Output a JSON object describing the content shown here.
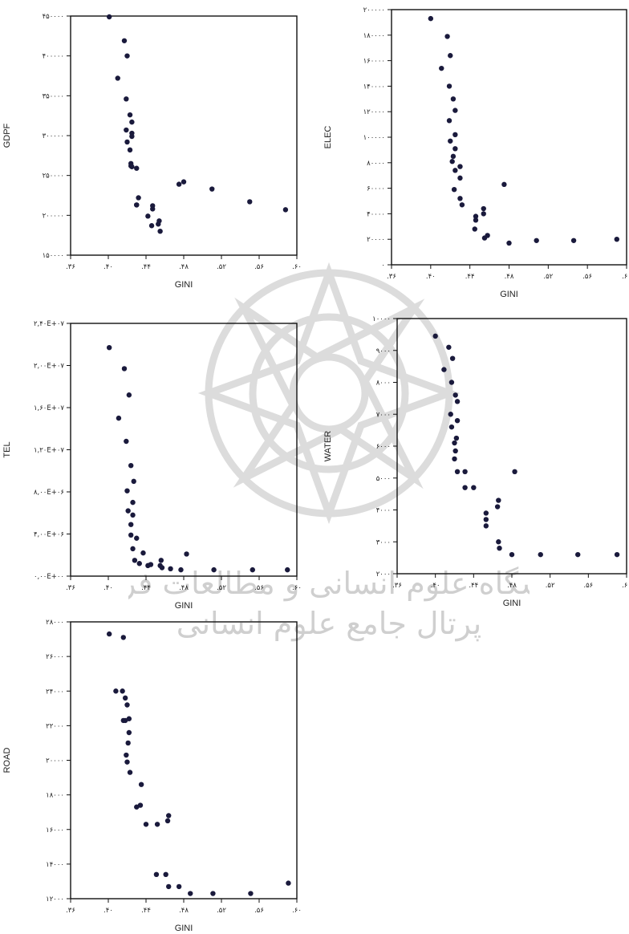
{
  "watermark": {
    "line1": "پژوهشگاه علوم انسانی و مطالعات فرهنگی",
    "line2": "پرتال جامع علوم انسانی"
  },
  "chart_data": [
    {
      "id": "gdpf",
      "type": "scatter",
      "xlabel": "GINI",
      "ylabel": "GDPF",
      "xlim": [
        0.36,
        0.6
      ],
      "ylim": [
        150000,
        450000
      ],
      "xtick_labels": [
        ".۳۶",
        ".۴۰",
        ".۴۴",
        ".۴۸",
        ".۵۲",
        ".۵۶",
        ".۶۰"
      ],
      "ytick_labels": [
        "۱۵۰۰۰۰",
        "۲۰۰۰۰۰",
        "۲۵۰۰۰۰",
        "۳۰۰۰۰۰",
        "۳۵۰۰۰۰",
        "۴۰۰۰۰۰",
        "۴۵۰۰۰۰"
      ],
      "x": [
        0.401,
        0.417,
        0.42,
        0.41,
        0.419,
        0.423,
        0.425,
        0.419,
        0.425,
        0.42,
        0.425,
        0.423,
        0.424,
        0.43,
        0.425,
        0.424,
        0.432,
        0.43,
        0.43,
        0.447,
        0.447,
        0.442,
        0.446,
        0.453,
        0.455,
        0.454,
        0.475,
        0.48,
        0.51,
        0.55,
        0.588
      ],
      "y": [
        449000,
        419000,
        400000,
        372000,
        346000,
        326000,
        317000,
        307000,
        303000,
        292000,
        299000,
        282000,
        265000,
        259000,
        261000,
        262000,
        222000,
        213000,
        213000,
        208000,
        212000,
        199000,
        187000,
        189000,
        180000,
        193000,
        239000,
        242000,
        233000,
        217000,
        207000
      ]
    },
    {
      "id": "elec",
      "type": "scatter",
      "xlabel": "GINI",
      "ylabel": "ELEC",
      "xlim": [
        0.36,
        0.6
      ],
      "ylim": [
        0,
        200000
      ],
      "xtick_labels": [
        ".۳۶",
        ".۴۰",
        ".۴۴",
        ".۴۸",
        ".۵۲",
        ".۵۶",
        ".۶۰"
      ],
      "ytick_labels": [
        "۰",
        "۲۰۰۰۰",
        "۴۰۰۰۰",
        "۶۰۰۰۰",
        "۸۰۰۰۰",
        "۱۰۰۰۰۰",
        "۱۲۰۰۰۰",
        "۱۴۰۰۰۰",
        "۱۶۰۰۰۰",
        "۱۸۰۰۰۰",
        "۲۰۰۰۰۰"
      ],
      "x": [
        0.4,
        0.417,
        0.42,
        0.411,
        0.419,
        0.423,
        0.425,
        0.419,
        0.425,
        0.42,
        0.425,
        0.423,
        0.422,
        0.43,
        0.425,
        0.43,
        0.424,
        0.43,
        0.432,
        0.446,
        0.446,
        0.445,
        0.454,
        0.454,
        0.458,
        0.455,
        0.48,
        0.475,
        0.508,
        0.546,
        0.59
      ],
      "y": [
        193000,
        179000,
        164000,
        154000,
        140000,
        130000,
        121000,
        113000,
        102000,
        97000,
        91000,
        85000,
        81000,
        77000,
        74000,
        68000,
        59000,
        52000,
        47000,
        38000,
        35000,
        28000,
        44000,
        40000,
        23000,
        21000,
        17000,
        63000,
        19000,
        19000,
        20000
      ]
    },
    {
      "id": "tel",
      "type": "scatter",
      "xlabel": "GINI",
      "ylabel": "TEL",
      "xlim": [
        0.36,
        0.6
      ],
      "ylim": [
        0,
        24000000
      ],
      "xtick_labels": [
        ".۳۶",
        ".۴۰",
        ".۴۴",
        ".۴۸",
        ".۵۲",
        ".۵۶",
        ".۶۰"
      ],
      "ytick_labels": [
        "۰,۰۰E+۰۰",
        "۴,۰۰E+۰۶",
        "۸,۰۰E+۰۶",
        "۱,۲۰E+۰۷",
        "۱,۶۰E+۰۷",
        "۲,۰۰E+۰۷",
        "۲,۴۰E+۰۷"
      ],
      "x": [
        0.401,
        0.417,
        0.422,
        0.411,
        0.419,
        0.424,
        0.427,
        0.42,
        0.426,
        0.421,
        0.426,
        0.424,
        0.424,
        0.43,
        0.426,
        0.428,
        0.437,
        0.433,
        0.445,
        0.442,
        0.455,
        0.456,
        0.457,
        0.466,
        0.483,
        0.477,
        0.512,
        0.553,
        0.59
      ],
      "y": [
        21700000,
        19700000,
        17200000,
        15000000,
        12800000,
        10500000,
        9000000,
        8100000,
        7000000,
        6200000,
        5800000,
        4900000,
        3900000,
        3600000,
        2600000,
        1500000,
        2200000,
        1200000,
        1100000,
        1000000,
        1000000,
        1500000,
        800000,
        700000,
        2100000,
        600000,
        600000,
        600000,
        600000
      ]
    },
    {
      "id": "water",
      "type": "scatter",
      "xlabel": "GINI",
      "ylabel": "WATER",
      "xlim": [
        0.36,
        0.6
      ],
      "ylim": [
        2000,
        10000
      ],
      "xtick_labels": [
        ".۳۶",
        ".۴۰",
        ".۴۴",
        ".۴۸",
        ".۵۲",
        ".۵۶",
        ".۶۰"
      ],
      "ytick_labels": [
        "۲۰۰۰",
        "۳۰۰۰",
        "۴۰۰۰",
        "۵۰۰۰",
        "۶۰۰۰",
        "۷۰۰۰",
        "۸۰۰۰",
        "۹۰۰۰",
        "۱۰۰۰۰"
      ],
      "x": [
        0.4,
        0.414,
        0.418,
        0.409,
        0.417,
        0.421,
        0.423,
        0.416,
        0.423,
        0.417,
        0.422,
        0.42,
        0.421,
        0.42,
        0.431,
        0.423,
        0.431,
        0.44,
        0.453,
        0.453,
        0.453,
        0.466,
        0.465,
        0.466,
        0.467,
        0.48,
        0.483,
        0.51,
        0.549,
        0.59
      ],
      "y": [
        9450.0,
        9100,
        8750,
        8400,
        8000,
        7600,
        7400,
        7000,
        6800,
        6600,
        6250,
        6100,
        5850,
        5600,
        5200,
        5200,
        4700,
        4700,
        3900,
        3700,
        3500,
        4300,
        4100,
        3000,
        2800,
        2600,
        5200,
        2600,
        2600,
        2600
      ]
    },
    {
      "id": "road",
      "type": "scatter",
      "xlabel": "GINI",
      "ylabel": "ROAD",
      "xlim": [
        0.36,
        0.6
      ],
      "ylim": [
        12000,
        28000
      ],
      "xtick_labels": [
        ".۳۶",
        ".۴۰",
        ".۴۴",
        ".۴۸",
        ".۵۲",
        ".۵۶",
        ".۶۰"
      ],
      "ytick_labels": [
        "۱۲۰۰۰",
        "۱۴۰۰۰",
        "۱۶۰۰۰",
        "۱۸۰۰۰",
        "۲۰۰۰۰",
        "۲۲۰۰۰",
        "۲۴۰۰۰",
        "۲۶۰۰۰",
        "۲۸۰۰۰"
      ],
      "x": [
        0.401,
        0.416,
        0.408,
        0.415,
        0.418,
        0.42,
        0.422,
        0.416,
        0.418,
        0.422,
        0.421,
        0.419,
        0.42,
        0.423,
        0.435,
        0.43,
        0.434,
        0.464,
        0.463,
        0.452,
        0.44,
        0.451,
        0.461,
        0.464,
        0.487,
        0.475,
        0.511,
        0.551,
        0.591
      ],
      "y": [
        27300,
        27100,
        24000,
        24000,
        23600,
        23200,
        22400,
        22300,
        22300,
        21600,
        21000,
        20300,
        19900,
        19300,
        18600,
        17300,
        17400,
        16800,
        16500,
        16300,
        16300,
        13400,
        13400,
        12700,
        12300,
        12700,
        12300,
        12300,
        12900
      ]
    }
  ]
}
